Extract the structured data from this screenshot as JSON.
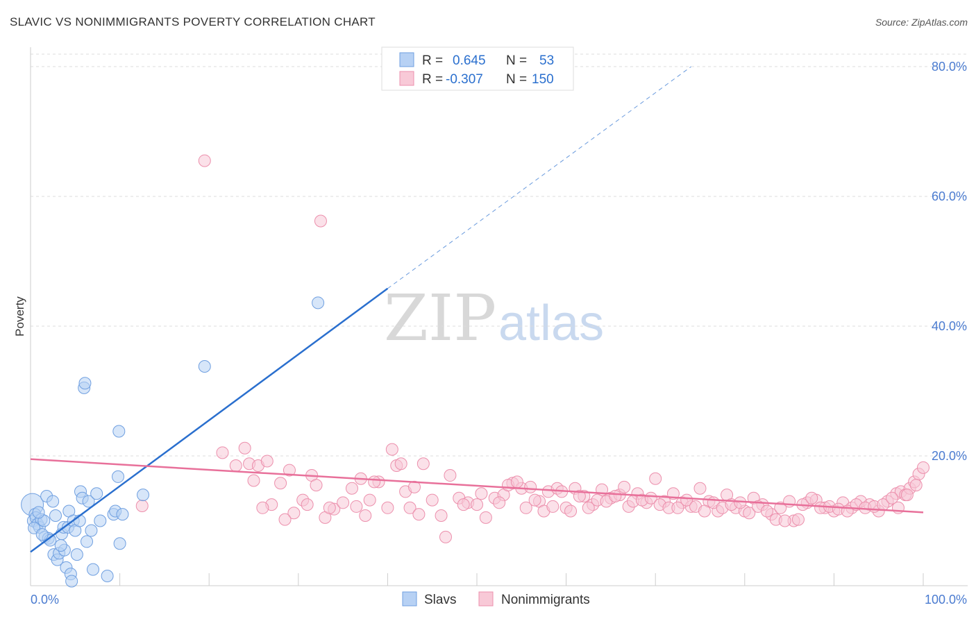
{
  "title": "SLAVIC VS NONIMMIGRANTS POVERTY CORRELATION CHART",
  "source": "Source: ZipAtlas.com",
  "watermark": {
    "part1": "ZIP",
    "part2": "atlas"
  },
  "legend_top": {
    "rows": [
      {
        "r_label": "R =",
        "r_value": "0.645",
        "n_label": "N =",
        "n_value": "53",
        "color": "#a9c8f2",
        "stroke": "#6f9fe0"
      },
      {
        "r_label": "R =",
        "r_value": "-0.307",
        "n_label": "N =",
        "n_value": "150",
        "color": "#f7bfd0",
        "stroke": "#ec8fac"
      }
    ]
  },
  "legend_bottom": [
    {
      "label": "Slavs",
      "color": "#a9c8f2",
      "stroke": "#6f9fe0"
    },
    {
      "label": "Nonimmigrants",
      "color": "#f7bfd0",
      "stroke": "#ec8fac"
    }
  ],
  "colors": {
    "blue": "#6f9fe0",
    "blue_fill": "#b7d1f4",
    "blue_line": "#2a6fce",
    "pink": "#ec8fac",
    "pink_fill": "#f8c9d7",
    "pink_line": "#e8709a",
    "tick_text": "#4a7bd0"
  },
  "chart_data": {
    "type": "scatter",
    "title": "SLAVIC VS NONIMMIGRANTS POVERTY CORRELATION CHART",
    "xlabel": "",
    "ylabel": "Poverty",
    "xlim": [
      0,
      100
    ],
    "ylim": [
      0,
      80
    ],
    "x_ticks": [
      {
        "value": 0,
        "label": "0.0%"
      },
      {
        "value": 100,
        "label": "100.0%"
      }
    ],
    "y_ticks": [
      {
        "value": 20,
        "label": "20.0%"
      },
      {
        "value": 40,
        "label": "40.0%"
      },
      {
        "value": 60,
        "label": "60.0%"
      },
      {
        "value": 80,
        "label": "80.0%"
      }
    ],
    "grid": true,
    "legend_placement": "top-center",
    "series": [
      {
        "name": "Slavs",
        "r": 0.645,
        "n": 53,
        "trend": {
          "x0": 0,
          "y0": 5.2,
          "x1": 40,
          "y1": 45.8,
          "x_dash_end": 74,
          "y_dash_end": 80
        },
        "points": [
          [
            0.2,
            12.5
          ],
          [
            0.3,
            10.0
          ],
          [
            0.5,
            11.0
          ],
          [
            0.6,
            10.5
          ],
          [
            0.8,
            9.5
          ],
          [
            1.0,
            9.0
          ],
          [
            1.2,
            10.2
          ],
          [
            1.5,
            10.0
          ],
          [
            1.6,
            7.5
          ],
          [
            1.8,
            13.8
          ],
          [
            2.0,
            7.3
          ],
          [
            2.2,
            7.0
          ],
          [
            2.5,
            13.0
          ],
          [
            2.6,
            4.8
          ],
          [
            2.8,
            10.8
          ],
          [
            3.0,
            4.0
          ],
          [
            3.2,
            5.0
          ],
          [
            3.5,
            8.0
          ],
          [
            3.7,
            9.0
          ],
          [
            3.8,
            5.5
          ],
          [
            4.0,
            2.8
          ],
          [
            4.2,
            9.0
          ],
          [
            4.3,
            11.5
          ],
          [
            4.5,
            1.8
          ],
          [
            4.8,
            10.0
          ],
          [
            5.0,
            8.5
          ],
          [
            5.2,
            4.8
          ],
          [
            5.5,
            10.0
          ],
          [
            5.6,
            14.5
          ],
          [
            5.8,
            13.5
          ],
          [
            6.0,
            30.5
          ],
          [
            6.1,
            31.2
          ],
          [
            6.3,
            6.8
          ],
          [
            6.5,
            13.0
          ],
          [
            6.8,
            8.5
          ],
          [
            7.0,
            2.5
          ],
          [
            7.4,
            14.2
          ],
          [
            7.8,
            10.0
          ],
          [
            8.6,
            1.5
          ],
          [
            9.3,
            11.0
          ],
          [
            9.5,
            11.5
          ],
          [
            9.8,
            16.8
          ],
          [
            9.9,
            23.8
          ],
          [
            10.0,
            6.5
          ],
          [
            10.3,
            11.0
          ],
          [
            12.6,
            14.0
          ],
          [
            0.4,
            8.9
          ],
          [
            0.9,
            11.3
          ],
          [
            19.5,
            33.8
          ],
          [
            32.2,
            43.6
          ],
          [
            1.3,
            7.9
          ],
          [
            3.4,
            6.2
          ],
          [
            4.6,
            0.7
          ]
        ]
      },
      {
        "name": "Nonimmigrants",
        "r": -0.307,
        "n": 150,
        "trend": {
          "x0": 0,
          "y0": 19.5,
          "x1": 100,
          "y1": 11.3
        },
        "points": [
          [
            19.5,
            65.5
          ],
          [
            32.5,
            56.2
          ],
          [
            12.5,
            12.3
          ],
          [
            21.5,
            20.5
          ],
          [
            24.0,
            21.2
          ],
          [
            24.5,
            18.8
          ],
          [
            25.0,
            16.2
          ],
          [
            25.5,
            18.5
          ],
          [
            26.5,
            19.2
          ],
          [
            27.0,
            12.5
          ],
          [
            28.0,
            15.8
          ],
          [
            29.0,
            17.8
          ],
          [
            29.5,
            11.2
          ],
          [
            30.5,
            13.2
          ],
          [
            31.5,
            17.0
          ],
          [
            32.0,
            15.5
          ],
          [
            33.0,
            10.5
          ],
          [
            34.0,
            11.8
          ],
          [
            35.0,
            12.8
          ],
          [
            36.0,
            15.0
          ],
          [
            37.0,
            16.5
          ],
          [
            37.5,
            10.8
          ],
          [
            38.0,
            13.2
          ],
          [
            39.0,
            16.0
          ],
          [
            40.0,
            12.0
          ],
          [
            40.5,
            21.0
          ],
          [
            41.0,
            18.5
          ],
          [
            41.5,
            18.8
          ],
          [
            42.0,
            14.5
          ],
          [
            43.0,
            15.2
          ],
          [
            44.0,
            18.8
          ],
          [
            45.0,
            13.2
          ],
          [
            46.0,
            10.8
          ],
          [
            47.0,
            17.0
          ],
          [
            48.0,
            13.5
          ],
          [
            49.0,
            12.8
          ],
          [
            50.0,
            12.5
          ],
          [
            51.0,
            10.5
          ],
          [
            52.0,
            13.5
          ],
          [
            53.0,
            14.0
          ],
          [
            54.0,
            15.8
          ],
          [
            55.0,
            15.0
          ],
          [
            56.0,
            15.2
          ],
          [
            57.0,
            13.0
          ],
          [
            57.5,
            11.5
          ],
          [
            58.0,
            14.5
          ],
          [
            59.0,
            15.0
          ],
          [
            60.0,
            12.0
          ],
          [
            60.5,
            11.5
          ],
          [
            61.0,
            15.0
          ],
          [
            62.0,
            13.8
          ],
          [
            63.0,
            12.5
          ],
          [
            64.0,
            14.8
          ],
          [
            65.0,
            13.5
          ],
          [
            66.0,
            14.0
          ],
          [
            67.0,
            12.2
          ],
          [
            68.0,
            14.2
          ],
          [
            69.0,
            12.8
          ],
          [
            70.0,
            16.5
          ],
          [
            71.0,
            13.0
          ],
          [
            72.0,
            14.2
          ],
          [
            73.0,
            12.8
          ],
          [
            74.0,
            12.2
          ],
          [
            75.0,
            15.0
          ],
          [
            76.0,
            13.0
          ],
          [
            77.0,
            11.5
          ],
          [
            78.0,
            14.0
          ],
          [
            79.0,
            12.0
          ],
          [
            80.0,
            11.5
          ],
          [
            81.0,
            13.5
          ],
          [
            82.0,
            12.5
          ],
          [
            83.0,
            11.0
          ],
          [
            84.0,
            12.0
          ],
          [
            85.0,
            13.0
          ],
          [
            85.5,
            10.0
          ],
          [
            86.0,
            10.2
          ],
          [
            87.0,
            12.8
          ],
          [
            88.0,
            13.2
          ],
          [
            89.0,
            12.0
          ],
          [
            90.0,
            11.5
          ],
          [
            91.0,
            12.8
          ],
          [
            92.0,
            12.0
          ],
          [
            93.0,
            13.0
          ],
          [
            94.0,
            12.5
          ],
          [
            95.0,
            11.5
          ],
          [
            96.0,
            13.0
          ],
          [
            97.0,
            14.2
          ],
          [
            97.5,
            14.5
          ],
          [
            98.0,
            14.0
          ],
          [
            98.5,
            15.0
          ],
          [
            99.0,
            16.0
          ],
          [
            99.5,
            17.2
          ],
          [
            100.0,
            18.2
          ],
          [
            23.0,
            18.5
          ],
          [
            26.0,
            12.0
          ],
          [
            28.5,
            10.2
          ],
          [
            31.0,
            12.5
          ],
          [
            33.5,
            12.0
          ],
          [
            36.5,
            12.2
          ],
          [
            38.5,
            16.0
          ],
          [
            42.5,
            12.0
          ],
          [
            43.5,
            11.0
          ],
          [
            46.5,
            7.5
          ],
          [
            48.5,
            12.5
          ],
          [
            50.5,
            14.2
          ],
          [
            52.5,
            12.8
          ],
          [
            53.5,
            15.5
          ],
          [
            54.5,
            16.0
          ],
          [
            55.5,
            12.0
          ],
          [
            56.5,
            13.2
          ],
          [
            58.5,
            12.2
          ],
          [
            59.5,
            14.5
          ],
          [
            61.5,
            13.8
          ],
          [
            62.5,
            12.0
          ],
          [
            63.5,
            13.2
          ],
          [
            64.5,
            13.0
          ],
          [
            65.5,
            13.8
          ],
          [
            66.5,
            15.2
          ],
          [
            67.5,
            13.0
          ],
          [
            68.5,
            13.2
          ],
          [
            69.5,
            13.5
          ],
          [
            70.5,
            12.5
          ],
          [
            71.5,
            12.0
          ],
          [
            72.5,
            12.0
          ],
          [
            73.5,
            13.2
          ],
          [
            74.5,
            12.2
          ],
          [
            75.5,
            11.5
          ],
          [
            76.5,
            12.8
          ],
          [
            77.5,
            12.0
          ],
          [
            78.5,
            12.5
          ],
          [
            79.5,
            12.8
          ],
          [
            80.5,
            11.2
          ],
          [
            81.5,
            12.2
          ],
          [
            82.5,
            11.5
          ],
          [
            83.5,
            10.2
          ],
          [
            84.5,
            10.0
          ],
          [
            86.5,
            12.5
          ],
          [
            87.5,
            13.5
          ],
          [
            88.5,
            12.0
          ],
          [
            89.5,
            12.2
          ],
          [
            90.5,
            11.8
          ],
          [
            91.5,
            11.5
          ],
          [
            92.5,
            12.5
          ],
          [
            93.5,
            12.0
          ],
          [
            94.5,
            12.2
          ],
          [
            95.5,
            12.5
          ],
          [
            96.5,
            13.5
          ],
          [
            97.2,
            12.0
          ],
          [
            98.2,
            14.0
          ],
          [
            99.2,
            15.5
          ]
        ]
      }
    ]
  }
}
